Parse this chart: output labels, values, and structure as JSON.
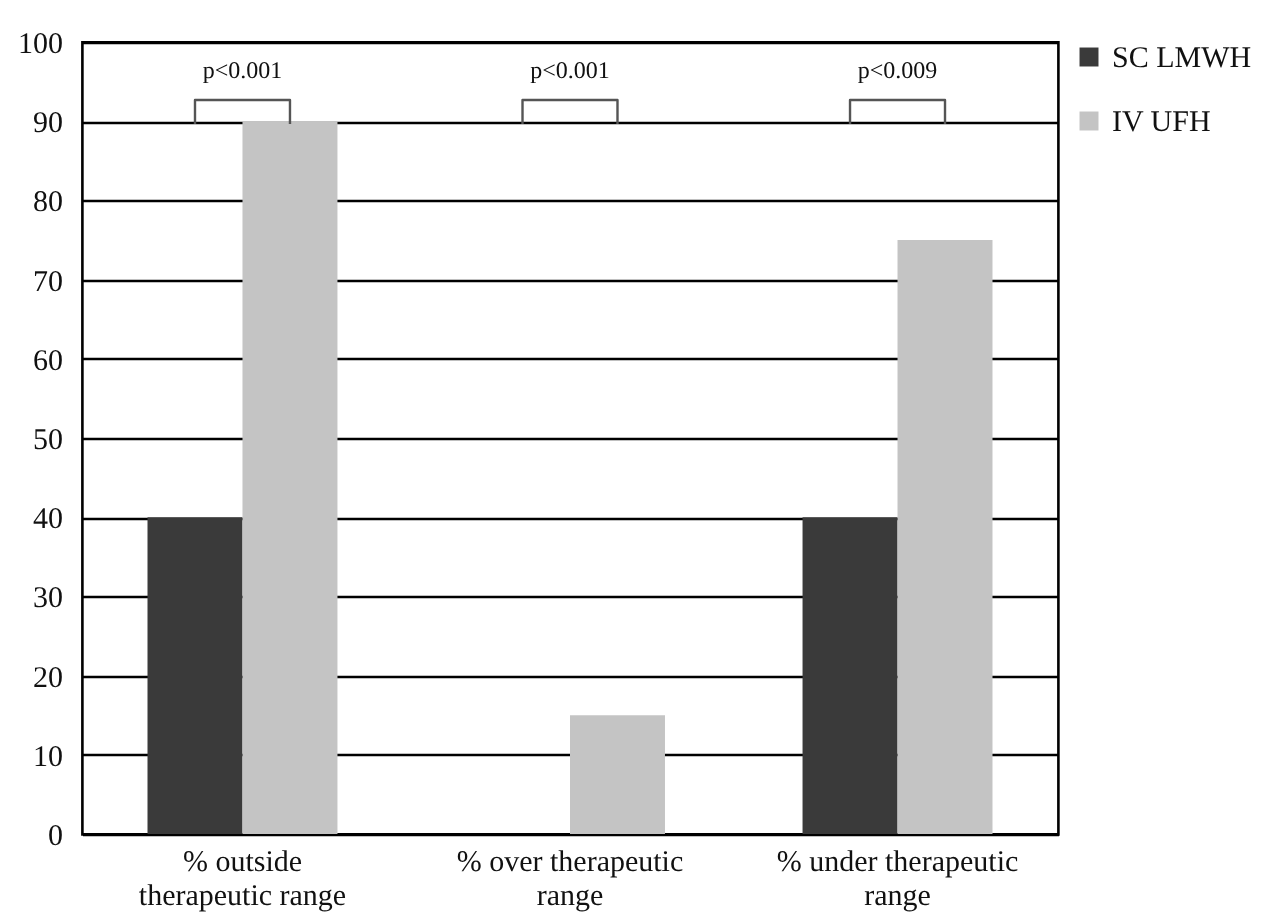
{
  "chart_data": {
    "type": "bar",
    "categories": [
      "% outside therapeutic range",
      "% over therapeutic range",
      "% under therapeutic range"
    ],
    "series": [
      {
        "name": "SC LMWH",
        "color": "#3a3a3a",
        "values": [
          40,
          0,
          40
        ]
      },
      {
        "name": "IV UFH",
        "color": "#c4c4c4",
        "values": [
          90,
          15,
          75
        ]
      }
    ],
    "ylim": [
      0,
      100
    ],
    "yticks": [
      0,
      10,
      20,
      30,
      40,
      50,
      60,
      70,
      80,
      90,
      100
    ],
    "grid": "y",
    "legend": "right",
    "annotations": [
      "p<0.001",
      "p<0.001",
      "p<0.009"
    ]
  }
}
